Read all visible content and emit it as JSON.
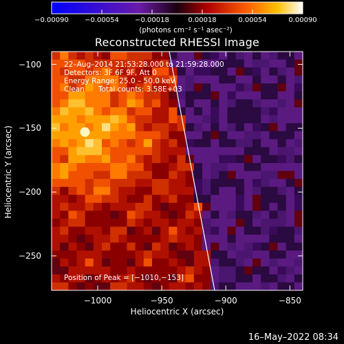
{
  "chart_data": {
    "type": "heatmap",
    "title": "Reconstructed RHESSI Image",
    "xlabel": "Heliocentric X (arcsec)",
    "ylabel": "Heliocentric Y (arcsec)",
    "xlim": [
      -1036,
      -840
    ],
    "ylim": [
      -277,
      -90
    ],
    "xticks": [
      -1000,
      -950,
      -900,
      -850
    ],
    "xtick_labels": [
      "−1000",
      "−950",
      "−900",
      "−850"
    ],
    "yticks": [
      -100,
      -150,
      -200,
      -250
    ],
    "ytick_labels": [
      "−100",
      "−150",
      "−200",
      "−250"
    ],
    "colorbar": {
      "range": [
        -0.0009,
        0.0009
      ],
      "ticks": [
        -0.0009,
        -0.00054,
        -0.00018,
        0.00018,
        0.00054,
        0.0009
      ],
      "tick_labels": [
        "−0.00090",
        "−0.00054",
        "−0.00018",
        "0.00018",
        "0.00054",
        "0.00090"
      ],
      "units_label": "(photons cm⁻² s⁻¹ asec⁻²)",
      "colormap": "blue-purple-red-orange-yellow-white"
    },
    "peak": {
      "x": -1010,
      "y": -153
    },
    "grid": false,
    "legend": "none"
  },
  "annotations": {
    "line1": "22–Aug–2014 21:53:28.000 to 21:59:28.000",
    "line2": "Detectors: 3F 6F 9F, Att 0",
    "line3": "Energy Range: 25.0 – 50.0 keV",
    "line4": "Clean      Total counts: 3.58E+03",
    "peak_text": "Position of Peak = [−1010,−153]"
  },
  "timestamp": "16–May–2022 08:34",
  "colors": {
    "background": "#000000",
    "text": "#ffffff",
    "limb": "#ffffff"
  }
}
